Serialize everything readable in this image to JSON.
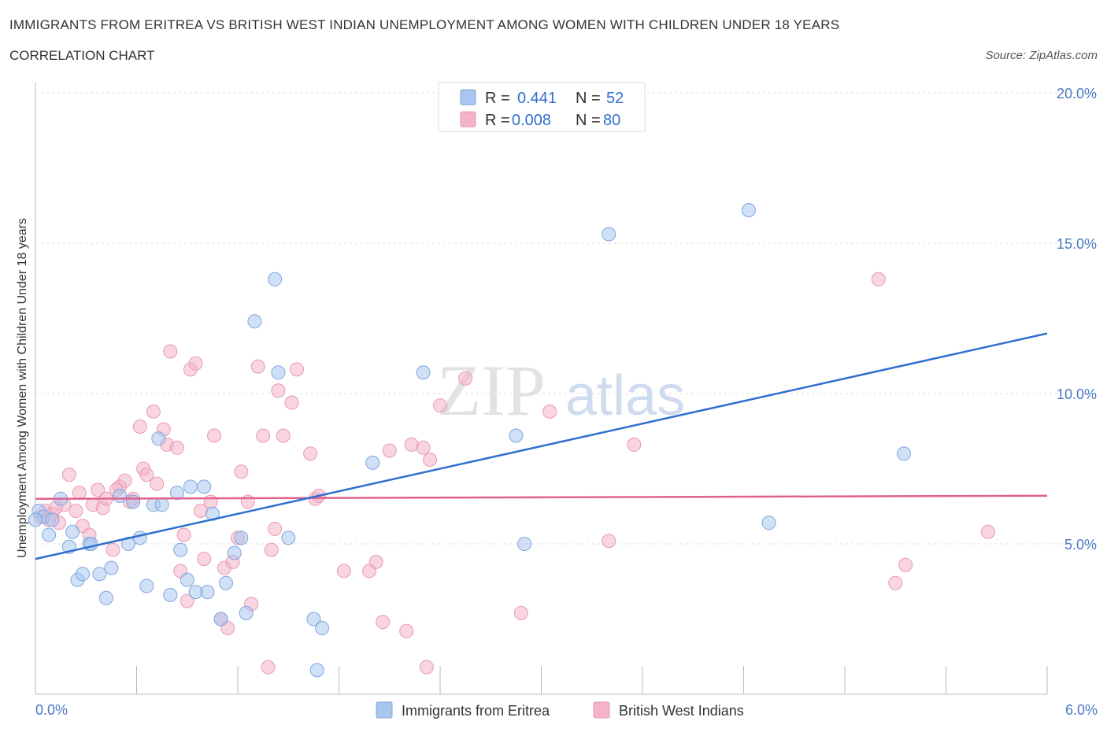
{
  "header": {
    "title": "IMMIGRANTS FROM ERITREA VS BRITISH WEST INDIAN UNEMPLOYMENT AMONG WOMEN WITH CHILDREN UNDER 18 YEARS",
    "subtitle": "CORRELATION CHART",
    "source": "Source: ZipAtlas.com"
  },
  "watermark": {
    "part1": "ZIP",
    "part2": "atlas"
  },
  "legend": {
    "rows": [
      {
        "r_label": "R =",
        "r_value": "0.441",
        "n_label": "N =",
        "n_value": "52",
        "color": "#a9c6f0"
      },
      {
        "r_label": "R =",
        "r_value": "0.008",
        "n_label": "N =",
        "n_value": "80",
        "color": "#f4b3c8"
      }
    ]
  },
  "bottom_legend": {
    "items": [
      {
        "label": "Immigrants from Eritrea",
        "color": "#a9c6f0"
      },
      {
        "label": "British West Indians",
        "color": "#f4b3c8"
      }
    ]
  },
  "chart_data": {
    "type": "scatter",
    "ylabel": "Unemployment Among Women with Children Under 18 years",
    "xlim": [
      0,
      6
    ],
    "ylim": [
      0,
      20
    ],
    "x_tick_labels": [
      "0.0%",
      "6.0%"
    ],
    "y_ticks": [
      5,
      10,
      15,
      20
    ],
    "y_tick_labels": [
      "5.0%",
      "10.0%",
      "15.0%",
      "20.0%"
    ],
    "grid": true,
    "colors": {
      "blue_point": "#a9c6f0",
      "blue_line": "#2f6fd0",
      "pink_point": "#f4b3c8",
      "pink_line": "#e0608e"
    },
    "series": [
      {
        "name": "Immigrants from Eritrea",
        "trend": [
          [
            0,
            4.5
          ],
          [
            6,
            12.0
          ]
        ],
        "points": [
          [
            0.02,
            6.1
          ],
          [
            0.05,
            5.9
          ],
          [
            0.08,
            5.3
          ],
          [
            0.1,
            5.8
          ],
          [
            0.15,
            6.5
          ],
          [
            0.2,
            4.9
          ],
          [
            0.22,
            5.4
          ],
          [
            0.25,
            3.8
          ],
          [
            0.28,
            4.0
          ],
          [
            0.32,
            5.0
          ],
          [
            0.33,
            5.0
          ],
          [
            0.38,
            4.0
          ],
          [
            0.42,
            3.2
          ],
          [
            0.45,
            4.2
          ],
          [
            0.5,
            6.6
          ],
          [
            0.55,
            5.0
          ],
          [
            0.58,
            6.4
          ],
          [
            0.62,
            5.2
          ],
          [
            0.66,
            3.6
          ],
          [
            0.7,
            6.3
          ],
          [
            0.73,
            8.5
          ],
          [
            0.75,
            6.3
          ],
          [
            0.8,
            3.3
          ],
          [
            0.84,
            6.7
          ],
          [
            0.86,
            4.8
          ],
          [
            0.9,
            3.8
          ],
          [
            0.92,
            6.9
          ],
          [
            0.95,
            3.4
          ],
          [
            1.0,
            6.9
          ],
          [
            1.02,
            3.4
          ],
          [
            1.05,
            6.0
          ],
          [
            1.1,
            2.5
          ],
          [
            1.13,
            3.7
          ],
          [
            1.18,
            4.7
          ],
          [
            1.22,
            5.2
          ],
          [
            1.25,
            2.7
          ],
          [
            1.3,
            12.4
          ],
          [
            1.42,
            13.8
          ],
          [
            1.44,
            10.7
          ],
          [
            1.5,
            5.2
          ],
          [
            1.65,
            2.5
          ],
          [
            1.7,
            2.2
          ],
          [
            1.67,
            0.8
          ],
          [
            2.0,
            7.7
          ],
          [
            2.3,
            10.7
          ],
          [
            2.85,
            8.6
          ],
          [
            2.9,
            5.0
          ],
          [
            3.4,
            15.3
          ],
          [
            4.23,
            16.1
          ],
          [
            4.35,
            5.7
          ],
          [
            5.15,
            8.0
          ],
          [
            0.0,
            5.8
          ]
        ]
      },
      {
        "name": "British West Indians",
        "trend": [
          [
            0,
            6.5
          ],
          [
            6,
            6.6
          ]
        ],
        "points": [
          [
            0.03,
            5.9
          ],
          [
            0.06,
            6.1
          ],
          [
            0.1,
            6.0
          ],
          [
            0.14,
            5.7
          ],
          [
            0.17,
            6.3
          ],
          [
            0.2,
            7.3
          ],
          [
            0.24,
            6.1
          ],
          [
            0.28,
            5.6
          ],
          [
            0.32,
            5.3
          ],
          [
            0.34,
            6.3
          ],
          [
            0.37,
            6.8
          ],
          [
            0.4,
            6.2
          ],
          [
            0.42,
            6.5
          ],
          [
            0.46,
            4.8
          ],
          [
            0.5,
            6.9
          ],
          [
            0.53,
            7.1
          ],
          [
            0.58,
            6.5
          ],
          [
            0.62,
            8.9
          ],
          [
            0.64,
            7.5
          ],
          [
            0.66,
            7.3
          ],
          [
            0.7,
            9.4
          ],
          [
            0.72,
            7.0
          ],
          [
            0.76,
            8.8
          ],
          [
            0.78,
            8.3
          ],
          [
            0.8,
            11.4
          ],
          [
            0.84,
            8.2
          ],
          [
            0.86,
            4.1
          ],
          [
            0.88,
            5.3
          ],
          [
            0.9,
            3.1
          ],
          [
            0.92,
            10.8
          ],
          [
            0.95,
            11.0
          ],
          [
            0.98,
            6.1
          ],
          [
            1.0,
            4.5
          ],
          [
            1.04,
            6.4
          ],
          [
            1.06,
            8.6
          ],
          [
            1.1,
            2.5
          ],
          [
            1.12,
            4.2
          ],
          [
            1.14,
            2.2
          ],
          [
            1.17,
            4.4
          ],
          [
            1.2,
            5.2
          ],
          [
            1.22,
            7.4
          ],
          [
            1.26,
            6.4
          ],
          [
            1.28,
            3.0
          ],
          [
            1.32,
            10.9
          ],
          [
            1.35,
            8.6
          ],
          [
            1.38,
            0.9
          ],
          [
            1.4,
            4.8
          ],
          [
            1.42,
            5.5
          ],
          [
            1.44,
            10.1
          ],
          [
            1.47,
            8.6
          ],
          [
            1.52,
            9.7
          ],
          [
            1.55,
            10.8
          ],
          [
            1.63,
            8.0
          ],
          [
            1.66,
            6.5
          ],
          [
            1.68,
            6.6
          ],
          [
            1.83,
            4.1
          ],
          [
            1.98,
            4.1
          ],
          [
            2.02,
            4.4
          ],
          [
            2.06,
            2.4
          ],
          [
            2.1,
            8.1
          ],
          [
            2.2,
            2.1
          ],
          [
            2.23,
            8.3
          ],
          [
            2.3,
            8.2
          ],
          [
            2.32,
            0.9
          ],
          [
            2.34,
            7.8
          ],
          [
            2.4,
            9.6
          ],
          [
            2.55,
            10.5
          ],
          [
            2.88,
            2.7
          ],
          [
            3.05,
            9.4
          ],
          [
            3.4,
            5.1
          ],
          [
            3.55,
            8.3
          ],
          [
            5.0,
            13.8
          ],
          [
            5.1,
            3.7
          ],
          [
            5.16,
            4.3
          ],
          [
            5.65,
            5.4
          ],
          [
            0.08,
            5.8
          ],
          [
            0.12,
            6.2
          ],
          [
            0.26,
            6.7
          ],
          [
            0.48,
            6.8
          ],
          [
            0.56,
            6.4
          ]
        ]
      }
    ]
  }
}
